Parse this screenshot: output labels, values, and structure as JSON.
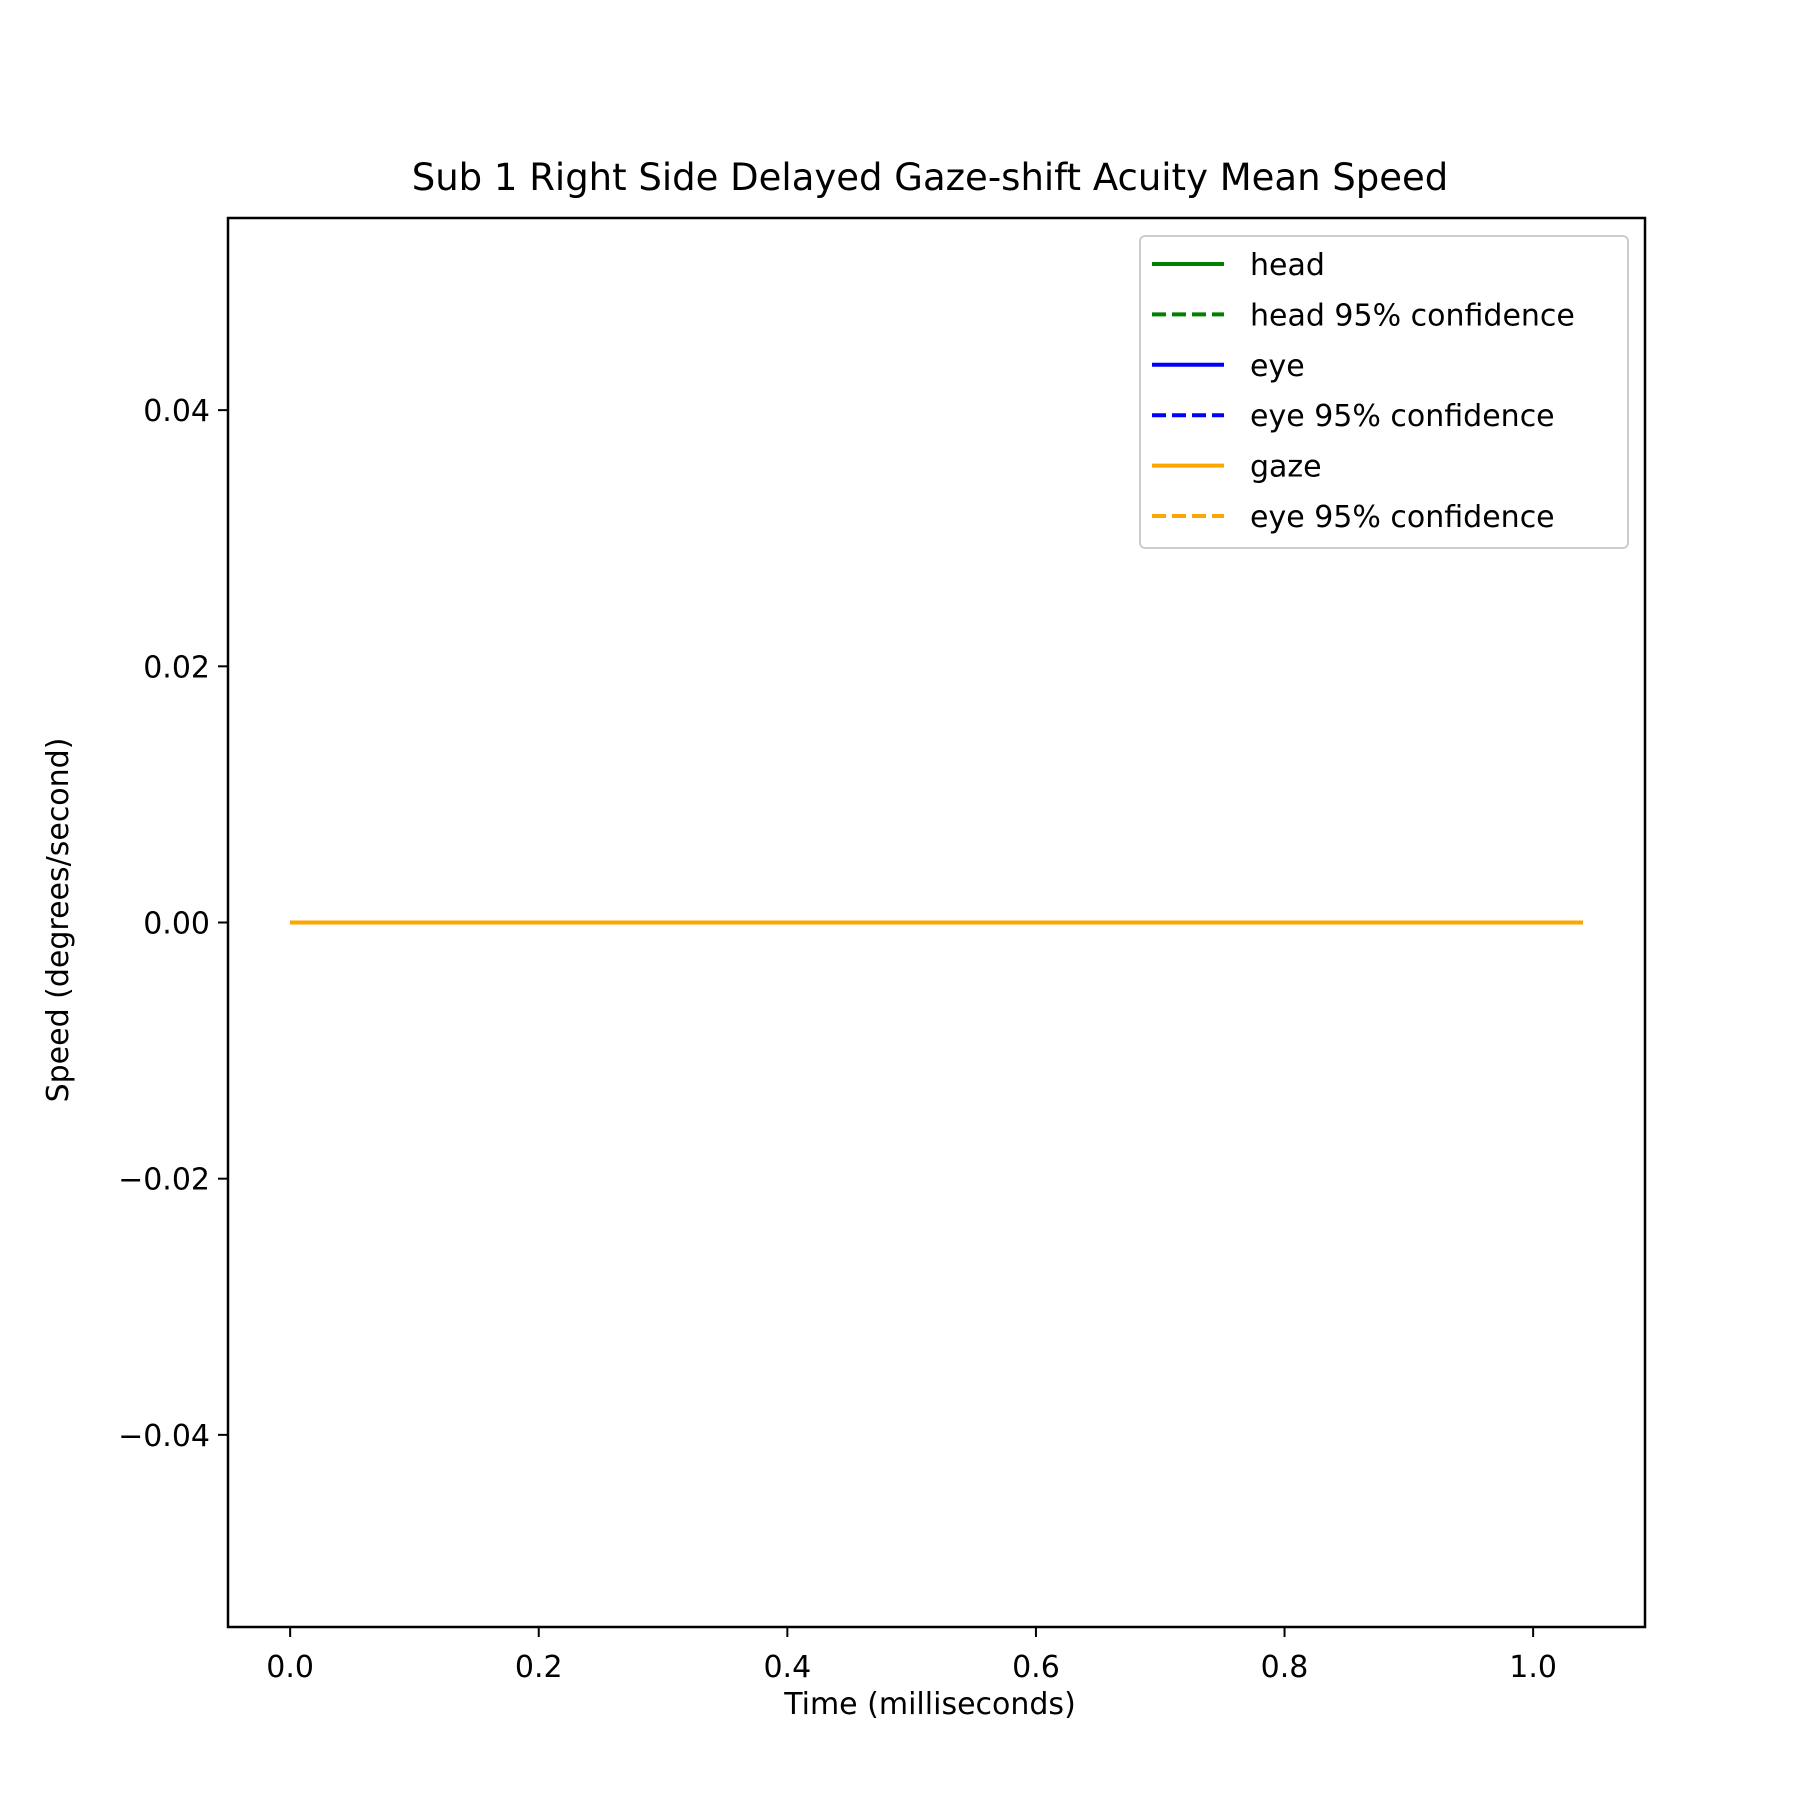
{
  "chart_data": {
    "type": "line",
    "title": "Sub 1 Right Side Delayed Gaze-shift Acuity Mean Speed",
    "xlabel": "Time (milliseconds)",
    "ylabel": "Speed (degrees/second)",
    "xlim": [
      -0.05,
      1.09
    ],
    "ylim": [
      -0.055,
      0.055
    ],
    "xticks": [
      0.0,
      0.2,
      0.4,
      0.6,
      0.8,
      1.0
    ],
    "xtick_labels": [
      "0.0",
      "0.2",
      "0.4",
      "0.6",
      "0.8",
      "1.0"
    ],
    "yticks": [
      0.04,
      0.02,
      0.0,
      -0.02,
      -0.04
    ],
    "ytick_labels": [
      "0.04",
      "0.02",
      "0.00",
      "−0.02",
      "−0.04"
    ],
    "grid": false,
    "legend_position": "top-right",
    "x": [
      0.0,
      0.2,
      0.4,
      0.6,
      0.8,
      1.0,
      1.04
    ],
    "series": [
      {
        "name": "head",
        "color": "#008000",
        "style": "solid",
        "values": [
          0,
          0,
          0,
          0,
          0,
          0,
          0
        ]
      },
      {
        "name": "head 95% confidence",
        "color": "#008000",
        "style": "dashed",
        "values": [
          0,
          0,
          0,
          0,
          0,
          0,
          0
        ]
      },
      {
        "name": "eye",
        "color": "#0000ff",
        "style": "solid",
        "values": [
          0,
          0,
          0,
          0,
          0,
          0,
          0
        ]
      },
      {
        "name": "eye 95% confidence",
        "color": "#0000ff",
        "style": "dashed",
        "values": [
          0,
          0,
          0,
          0,
          0,
          0,
          0
        ]
      },
      {
        "name": "gaze",
        "color": "#ffa500",
        "style": "solid",
        "values": [
          0,
          0,
          0,
          0,
          0,
          0,
          0
        ]
      },
      {
        "name": "eye 95% confidence",
        "color": "#ffa500",
        "style": "dashed",
        "values": [
          0,
          0,
          0,
          0,
          0,
          0,
          0
        ]
      }
    ]
  }
}
